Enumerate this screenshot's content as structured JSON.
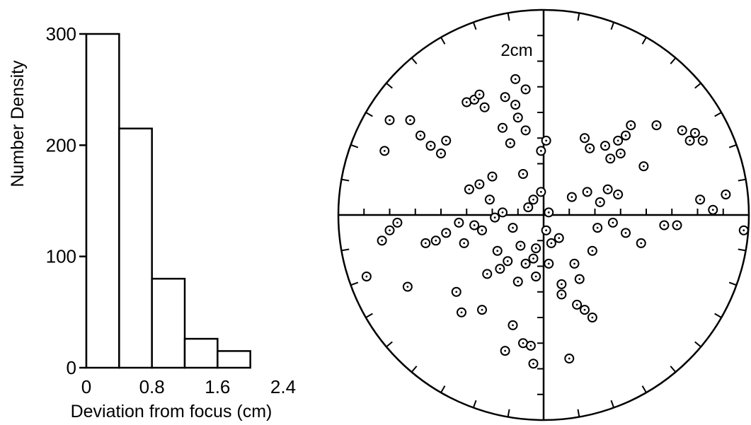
{
  "chart_data": [
    {
      "type": "bar",
      "bins": [
        [
          0,
          0.4
        ],
        [
          0.4,
          0.8
        ],
        [
          0.8,
          1.2
        ],
        [
          1.2,
          1.6
        ],
        [
          1.6,
          2.0
        ]
      ],
      "values": [
        300,
        215,
        80,
        26,
        15
      ],
      "xlabel": "Deviation from focus (cm)",
      "ylabel": "Number Density",
      "xlim": [
        0,
        2.4
      ],
      "ylim": [
        0,
        300
      ],
      "xticks": [
        "0",
        "0.8",
        "1.6",
        "2.4"
      ],
      "yticks": [
        "0",
        "100",
        "200",
        "300"
      ],
      "grid": false
    },
    {
      "type": "scatter",
      "scale_label": "2cm",
      "range_cm": 3.2,
      "points": [
        [
          -3.0,
          1.85
        ],
        [
          -0.55,
          2.15
        ],
        [
          -1.9,
          1.45
        ],
        [
          -2.0,
          1.2
        ],
        [
          0.05,
          1.45
        ],
        [
          -3.1,
          1.25
        ],
        [
          -2.6,
          1.85
        ],
        [
          -2.4,
          1.55
        ],
        [
          -2.2,
          1.35
        ],
        [
          -1.0,
          0.75
        ],
        [
          0.7,
          -1.25
        ],
        [
          1.7,
          1.75
        ],
        [
          2.2,
          1.75
        ],
        [
          2.85,
          1.45
        ],
        [
          2.7,
          1.65
        ],
        [
          1.45,
          1.45
        ],
        [
          1.6,
          1.55
        ],
        [
          1.95,
          0.95
        ],
        [
          2.95,
          1.6
        ],
        [
          3.1,
          1.45
        ],
        [
          0.9,
          1.3
        ],
        [
          0.8,
          1.5
        ],
        [
          1.3,
          1.1
        ],
        [
          1.2,
          1.35
        ],
        [
          1.5,
          1.2
        ],
        [
          -0.35,
          1.65
        ],
        [
          -0.4,
          0.8
        ],
        [
          -0.05,
          1.25
        ],
        [
          -0.8,
          1.7
        ],
        [
          -0.65,
          1.4
        ],
        [
          -1.5,
          2.2
        ],
        [
          -1.35,
          2.25
        ],
        [
          -1.25,
          2.35
        ],
        [
          -1.15,
          2.1
        ],
        [
          -0.35,
          2.45
        ],
        [
          -0.55,
          2.65
        ],
        [
          -0.75,
          2.3
        ],
        [
          -0.5,
          1.9
        ],
        [
          -1.7,
          -1.5
        ],
        [
          -1.6,
          -1.9
        ],
        [
          -0.15,
          -1.2
        ],
        [
          0.35,
          -1.35
        ],
        [
          -0.9,
          -0.7
        ],
        [
          -0.45,
          -0.6
        ],
        [
          -0.2,
          -0.85
        ],
        [
          -0.85,
          -1.05
        ],
        [
          -0.7,
          -0.9
        ],
        [
          -0.5,
          -1.3
        ],
        [
          0.1,
          -0.95
        ],
        [
          0.3,
          -0.45
        ],
        [
          -1.2,
          -0.3
        ],
        [
          -1.35,
          -0.2
        ],
        [
          -1.55,
          -0.55
        ],
        [
          -1.9,
          -0.35
        ],
        [
          -1.65,
          -0.15
        ],
        [
          -2.1,
          -0.5
        ],
        [
          -2.3,
          -0.55
        ],
        [
          -1.25,
          0.6
        ],
        [
          -1.45,
          0.5
        ],
        [
          -1.05,
          0.3
        ],
        [
          0.55,
          0.35
        ],
        [
          0.85,
          0.45
        ],
        [
          1.1,
          0.25
        ],
        [
          1.25,
          0.5
        ],
        [
          1.45,
          0.4
        ],
        [
          1.05,
          -0.25
        ],
        [
          1.35,
          -0.15
        ],
        [
          1.6,
          -0.35
        ],
        [
          1.9,
          -0.55
        ],
        [
          2.35,
          -0.2
        ],
        [
          2.6,
          -0.2
        ],
        [
          3.05,
          0.3
        ],
        [
          3.3,
          0.1
        ],
        [
          3.55,
          0.4
        ],
        [
          3.9,
          -0.3
        ],
        [
          -0.3,
          0.15
        ],
        [
          -0.2,
          0.3
        ],
        [
          -0.05,
          0.45
        ],
        [
          0.1,
          0.05
        ],
        [
          0.05,
          -0.3
        ],
        [
          0.15,
          -0.55
        ],
        [
          -0.15,
          -0.65
        ],
        [
          -0.35,
          -0.95
        ],
        [
          0.6,
          -0.95
        ],
        [
          0.95,
          -0.7
        ],
        [
          0.35,
          -1.55
        ],
        [
          0.65,
          -1.75
        ],
        [
          0.8,
          -1.85
        ],
        [
          0.95,
          -2.0
        ],
        [
          -0.6,
          -2.15
        ],
        [
          -0.4,
          -2.5
        ],
        [
          -0.75,
          -2.65
        ],
        [
          -0.2,
          -2.9
        ],
        [
          -1.1,
          -1.15
        ],
        [
          -0.95,
          -0.05
        ],
        [
          -0.8,
          0.05
        ],
        [
          -0.6,
          -0.25
        ],
        [
          -2.85,
          -0.15
        ],
        [
          -3.0,
          -0.3
        ],
        [
          -3.15,
          -0.5
        ],
        [
          -3.45,
          -1.2
        ],
        [
          -2.65,
          -1.4
        ],
        [
          0.5,
          -2.8
        ],
        [
          -1.2,
          -1.85
        ],
        [
          -0.25,
          -2.55
        ]
      ]
    }
  ]
}
